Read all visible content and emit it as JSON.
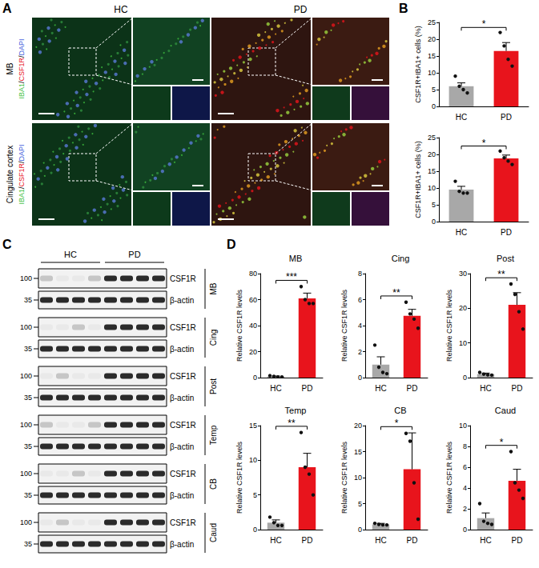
{
  "chart_data": [
    {
      "type": "bar",
      "ylabel": "CSF1R+IBA1+ cells (%)",
      "categories": [
        "HC",
        "PD"
      ],
      "values": [
        6,
        16.5
      ],
      "errors": [
        1,
        2.5
      ],
      "points": [
        [
          9,
          6,
          5,
          4
        ],
        [
          22,
          18,
          14,
          12
        ]
      ],
      "colors": [
        "#a8a8a8",
        "#e8141c"
      ],
      "ylim": [
        0,
        25
      ],
      "yticks": [
        0,
        5,
        10,
        15,
        20,
        25
      ],
      "significance": "*",
      "grid": false
    },
    {
      "type": "bar",
      "ylabel": "CSF1R+IBA1+ cells (%)",
      "categories": [
        "HC",
        "PD"
      ],
      "values": [
        9.5,
        18.8
      ],
      "errors": [
        1,
        1
      ],
      "points": [
        [
          12,
          9,
          8.5,
          8.5
        ],
        [
          21,
          19,
          18,
          17
        ]
      ],
      "colors": [
        "#a8a8a8",
        "#e8141c"
      ],
      "ylim": [
        0,
        25
      ],
      "yticks": [
        0,
        5,
        10,
        15,
        20,
        25
      ],
      "significance": "*",
      "grid": false
    },
    {
      "type": "bar",
      "title": "MB",
      "ylabel": "Relative CSF1R levels",
      "categories": [
        "HC",
        "PD"
      ],
      "values": [
        0.9,
        61
      ],
      "errors": [
        0.3,
        4
      ],
      "points": [
        [
          1.5,
          1,
          0.5,
          0.5
        ],
        [
          70,
          60,
          57,
          57
        ]
      ],
      "colors": [
        "#a8a8a8",
        "#e8141c"
      ],
      "ylim": [
        0,
        80
      ],
      "yticks": [
        0,
        20,
        40,
        60,
        80
      ],
      "significance": "***",
      "grid": false
    },
    {
      "type": "bar",
      "title": "Cing",
      "ylabel": "Relative CSF1R levels",
      "categories": [
        "HC",
        "PD"
      ],
      "values": [
        1.0,
        4.75
      ],
      "errors": [
        0.6,
        0.5
      ],
      "points": [
        [
          2.5,
          0.8,
          0.4,
          0.3
        ],
        [
          5.8,
          4.9,
          4.5,
          3.8
        ]
      ],
      "colors": [
        "#a8a8a8",
        "#e8141c"
      ],
      "ylim": [
        0,
        8
      ],
      "yticks": [
        0,
        2,
        4,
        6,
        8
      ],
      "significance": "**",
      "grid": false
    },
    {
      "type": "bar",
      "title": "Post",
      "ylabel": "Relative CSF1R levels",
      "categories": [
        "HC",
        "PD"
      ],
      "values": [
        1.0,
        21
      ],
      "errors": [
        0.3,
        3.5
      ],
      "points": [
        [
          1.5,
          1,
          0.8,
          0.7
        ],
        [
          27,
          24,
          19,
          14
        ]
      ],
      "colors": [
        "#a8a8a8",
        "#e8141c"
      ],
      "ylim": [
        0,
        30
      ],
      "yticks": [
        0,
        10,
        20,
        30
      ],
      "significance": "**",
      "grid": false
    },
    {
      "type": "bar",
      "title": "Temp",
      "ylabel": "Relative CSF1R levels",
      "categories": [
        "HC",
        "PD"
      ],
      "values": [
        1.0,
        9
      ],
      "errors": [
        0.4,
        2
      ],
      "points": [
        [
          1.8,
          1,
          0.6,
          0.6
        ],
        [
          14,
          9,
          8,
          5
        ]
      ],
      "colors": [
        "#a8a8a8",
        "#e8141c"
      ],
      "ylim": [
        0,
        15
      ],
      "yticks": [
        0,
        5,
        10,
        15
      ],
      "significance": "**",
      "grid": false
    },
    {
      "type": "bar",
      "title": "CB",
      "ylabel": "Relative CSF1R levels",
      "categories": [
        "HC",
        "PD"
      ],
      "values": [
        1.0,
        11.6
      ],
      "errors": [
        0.2,
        7
      ],
      "points": [
        [
          1.2,
          1,
          0.9,
          0.9
        ],
        [
          18.5,
          17,
          9,
          2
        ]
      ],
      "colors": [
        "#a8a8a8",
        "#e8141c"
      ],
      "ylim": [
        0,
        20
      ],
      "yticks": [
        0,
        5,
        10,
        15,
        20
      ],
      "significance": "*",
      "grid": false
    },
    {
      "type": "bar",
      "title": "Caud",
      "ylabel": "Relative CSF1R levels",
      "categories": [
        "HC",
        "PD"
      ],
      "values": [
        1.1,
        4.7
      ],
      "errors": [
        0.5,
        1.1
      ],
      "points": [
        [
          2.5,
          0.8,
          0.6,
          0.5
        ],
        [
          7.5,
          4.5,
          3.8,
          3
        ]
      ],
      "colors": [
        "#a8a8a8",
        "#e8141c"
      ],
      "ylim": [
        0,
        10
      ],
      "yticks": [
        0,
        2,
        4,
        6,
        8,
        10
      ],
      "significance": "*",
      "grid": false
    }
  ],
  "figure": {
    "A": {
      "label": "A",
      "columns": [
        "HC",
        "PD"
      ],
      "rows": [
        "MB",
        "Cingulate cortex"
      ],
      "stain": {
        "parts": [
          "IBA1",
          "CSF1R",
          "DAPI"
        ],
        "colors": [
          "#3fbf3f",
          "#e8141c",
          "#3b5bdb"
        ],
        "separator": "/"
      }
    },
    "B": {
      "label": "B"
    },
    "C": {
      "label": "C",
      "groups": [
        "HC",
        "PD"
      ],
      "bands": [
        "CSF1R",
        "β-actin"
      ],
      "markers": [
        100,
        35
      ],
      "regions": [
        "MB",
        "Cing",
        "Post",
        "Temp",
        "CB",
        "Caud"
      ]
    },
    "D": {
      "label": "D"
    }
  }
}
